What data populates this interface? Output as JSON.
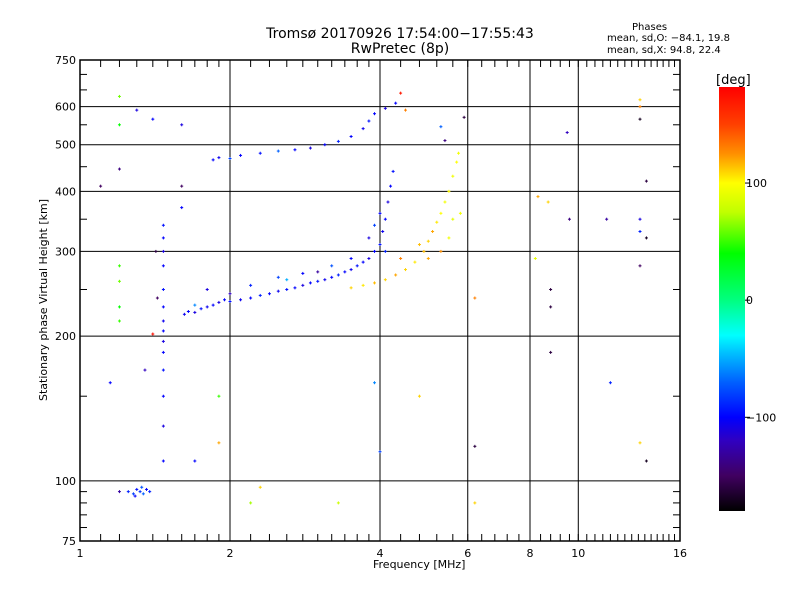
{
  "title_line1": "Tromsø 20170926 17:54:00−17:55:43",
  "title_line2": "RwPretec (8p)",
  "stats": {
    "heading": "Phases",
    "o_line": "mean, sd,O: −84.1, 19.8",
    "x_line": "mean, sd,X:  94.8, 22.4"
  },
  "colorbar": {
    "label": "[deg]",
    "range": [
      -180,
      182
    ],
    "ticks": [
      {
        "v": 100,
        "label": "100"
      },
      {
        "v": 0,
        "label": "0"
      },
      {
        "v": -100,
        "label": "−100"
      }
    ],
    "stops": [
      {
        "v": -180,
        "c": "#000000"
      },
      {
        "v": -150,
        "c": "#400060"
      },
      {
        "v": -120,
        "c": "#3000c0"
      },
      {
        "v": -100,
        "c": "#0000ff"
      },
      {
        "v": -70,
        "c": "#0060ff"
      },
      {
        "v": -45,
        "c": "#00c0ff"
      },
      {
        "v": -30,
        "c": "#00ffff"
      },
      {
        "v": 0,
        "c": "#00ff80"
      },
      {
        "v": 40,
        "c": "#00ff00"
      },
      {
        "v": 75,
        "c": "#c0ff00"
      },
      {
        "v": 100,
        "c": "#ffff00"
      },
      {
        "v": 125,
        "c": "#ff9000"
      },
      {
        "v": 150,
        "c": "#ff4000"
      },
      {
        "v": 182,
        "c": "#ff0000"
      }
    ]
  },
  "chart_data": {
    "type": "scatter",
    "xlabel": "Frequency [MHz]",
    "ylabel": "Stationary phase Virtual Height [km]",
    "xscale": "log",
    "yscale": "log",
    "xlim": [
      1,
      16
    ],
    "ylim": [
      75,
      750
    ],
    "xticks": [
      {
        "v": 1,
        "l": "1"
      },
      {
        "v": 2,
        "l": "2"
      },
      {
        "v": 4,
        "l": "4"
      },
      {
        "v": 6,
        "l": "6"
      },
      {
        "v": 8,
        "l": "8"
      },
      {
        "v": 10,
        "l": "10"
      },
      {
        "v": 16,
        "l": "16"
      }
    ],
    "yticks": [
      {
        "v": 75,
        "l": "75"
      },
      {
        "v": 100,
        "l": "100"
      },
      {
        "v": 200,
        "l": "200"
      },
      {
        "v": 300,
        "l": "300"
      },
      {
        "v": 400,
        "l": "400"
      },
      {
        "v": 500,
        "l": "500"
      },
      {
        "v": 600,
        "l": "600"
      },
      {
        "v": 750,
        "l": "750"
      }
    ],
    "grid": true,
    "point_fields": [
      "frequency_MHz",
      "height_km",
      "phase_deg"
    ],
    "points": [
      [
        1.62,
        222,
        -105
      ],
      [
        1.65,
        225,
        -100
      ],
      [
        1.7,
        224,
        -110
      ],
      [
        1.75,
        228,
        -95
      ],
      [
        1.8,
        230,
        -105
      ],
      [
        1.85,
        232,
        -100
      ],
      [
        1.9,
        235,
        -110
      ],
      [
        1.95,
        238,
        -100
      ],
      [
        2.0,
        236,
        -95
      ],
      [
        2.1,
        238,
        -105
      ],
      [
        2.2,
        240,
        -100
      ],
      [
        2.3,
        243,
        -90
      ],
      [
        2.4,
        245,
        -100
      ],
      [
        2.5,
        248,
        -105
      ],
      [
        2.6,
        250,
        -95
      ],
      [
        2.7,
        252,
        -100
      ],
      [
        2.8,
        255,
        -110
      ],
      [
        2.9,
        258,
        -100
      ],
      [
        3.0,
        260,
        -95
      ],
      [
        3.1,
        262,
        -105
      ],
      [
        3.2,
        265,
        -100
      ],
      [
        3.3,
        268,
        -90
      ],
      [
        3.4,
        272,
        -100
      ],
      [
        3.5,
        275,
        -105
      ],
      [
        3.6,
        280,
        -95
      ],
      [
        3.7,
        285,
        -100
      ],
      [
        3.8,
        290,
        -110
      ],
      [
        3.9,
        300,
        -100
      ],
      [
        4.0,
        310,
        -95
      ],
      [
        4.05,
        330,
        -105
      ],
      [
        4.1,
        350,
        -100
      ],
      [
        4.15,
        380,
        -110
      ],
      [
        4.2,
        410,
        -100
      ],
      [
        4.25,
        440,
        -95
      ],
      [
        1.8,
        250,
        -110
      ],
      [
        2.2,
        255,
        -90
      ],
      [
        2.5,
        265,
        -80
      ],
      [
        2.8,
        270,
        -100
      ],
      [
        3.2,
        280,
        -75
      ],
      [
        3.5,
        290,
        -100
      ],
      [
        3.8,
        320,
        -110
      ],
      [
        4.0,
        360,
        -100
      ],
      [
        4.1,
        300,
        -90
      ],
      [
        1.7,
        232,
        -60
      ],
      [
        2.0,
        245,
        -120
      ],
      [
        2.6,
        262,
        -50
      ],
      [
        3.0,
        272,
        -130
      ],
      [
        3.9,
        340,
        -80
      ],
      [
        3.5,
        252,
        110
      ],
      [
        3.7,
        255,
        105
      ],
      [
        3.9,
        258,
        115
      ],
      [
        4.1,
        262,
        110
      ],
      [
        4.3,
        268,
        120
      ],
      [
        4.5,
        275,
        110
      ],
      [
        4.7,
        285,
        105
      ],
      [
        4.9,
        300,
        115
      ],
      [
        5.0,
        315,
        110
      ],
      [
        5.1,
        330,
        120
      ],
      [
        5.2,
        345,
        105
      ],
      [
        5.3,
        360,
        100
      ],
      [
        5.4,
        380,
        95
      ],
      [
        5.5,
        400,
        100
      ],
      [
        5.6,
        430,
        95
      ],
      [
        5.7,
        460,
        100
      ],
      [
        5.75,
        480,
        95
      ],
      [
        5.6,
        350,
        90
      ],
      [
        5.8,
        360,
        95
      ],
      [
        5.5,
        320,
        95
      ],
      [
        4.8,
        310,
        115
      ],
      [
        5.0,
        290,
        120
      ],
      [
        4.4,
        290,
        130
      ],
      [
        5.3,
        300,
        125
      ],
      [
        1.85,
        465,
        -100
      ],
      [
        1.9,
        470,
        -105
      ],
      [
        2.0,
        468,
        -80
      ],
      [
        2.1,
        475,
        -100
      ],
      [
        2.3,
        480,
        -95
      ],
      [
        2.5,
        485,
        -70
      ],
      [
        2.7,
        488,
        -100
      ],
      [
        2.9,
        492,
        -110
      ],
      [
        3.1,
        500,
        -100
      ],
      [
        3.3,
        508,
        -90
      ],
      [
        3.5,
        520,
        -100
      ],
      [
        3.7,
        540,
        -105
      ],
      [
        3.8,
        560,
        -95
      ],
      [
        3.9,
        580,
        -100
      ],
      [
        4.1,
        595,
        -110
      ],
      [
        4.3,
        610,
        -100
      ],
      [
        1.47,
        110,
        -100
      ],
      [
        1.47,
        130,
        -110
      ],
      [
        1.47,
        150,
        -100
      ],
      [
        1.47,
        170,
        -95
      ],
      [
        1.47,
        185,
        -100
      ],
      [
        1.47,
        195,
        -110
      ],
      [
        1.47,
        205,
        -100
      ],
      [
        1.47,
        215,
        -105
      ],
      [
        1.47,
        230,
        -100
      ],
      [
        1.47,
        250,
        -95
      ],
      [
        1.47,
        280,
        -100
      ],
      [
        1.47,
        300,
        -110
      ],
      [
        1.47,
        320,
        -100
      ],
      [
        1.47,
        340,
        -95
      ],
      [
        1.43,
        240,
        -150
      ],
      [
        1.42,
        300,
        -160
      ],
      [
        1.4,
        202,
        175
      ],
      [
        1.25,
        95,
        -90
      ],
      [
        1.28,
        94,
        -80
      ],
      [
        1.3,
        96,
        -95
      ],
      [
        1.32,
        95,
        -85
      ],
      [
        1.34,
        94,
        -70
      ],
      [
        1.36,
        96,
        -100
      ],
      [
        1.38,
        95,
        -90
      ],
      [
        1.29,
        93,
        -100
      ],
      [
        1.33,
        97,
        -75
      ],
      [
        1.2,
        630,
        60
      ],
      [
        1.2,
        550,
        40
      ],
      [
        1.2,
        445,
        -140
      ],
      [
        1.2,
        280,
        50
      ],
      [
        1.2,
        260,
        60
      ],
      [
        1.2,
        230,
        40
      ],
      [
        1.2,
        215,
        50
      ],
      [
        1.2,
        95,
        -130
      ],
      [
        1.3,
        590,
        -110
      ],
      [
        1.4,
        565,
        -100
      ],
      [
        1.1,
        410,
        -150
      ],
      [
        1.35,
        170,
        -120
      ],
      [
        1.15,
        160,
        -100
      ],
      [
        1.6,
        550,
        -110
      ],
      [
        1.6,
        370,
        -100
      ],
      [
        1.6,
        410,
        -150
      ],
      [
        1.7,
        110,
        -100
      ],
      [
        1.9,
        150,
        50
      ],
      [
        1.9,
        120,
        120
      ],
      [
        2.3,
        97,
        110
      ],
      [
        2.2,
        90,
        70
      ],
      [
        3.3,
        90,
        80
      ],
      [
        3.9,
        160,
        -60
      ],
      [
        4.0,
        115,
        -80
      ],
      [
        4.5,
        590,
        130
      ],
      [
        4.4,
        640,
        170
      ],
      [
        6.2,
        240,
        130
      ],
      [
        6.2,
        118,
        -160
      ],
      [
        6.2,
        90,
        110
      ],
      [
        8.3,
        390,
        120
      ],
      [
        8.2,
        290,
        90
      ],
      [
        8.7,
        380,
        110
      ],
      [
        8.8,
        250,
        -160
      ],
      [
        8.8,
        230,
        -160
      ],
      [
        8.8,
        185,
        -160
      ],
      [
        9.5,
        530,
        -120
      ],
      [
        9.6,
        350,
        -140
      ],
      [
        11.4,
        350,
        -130
      ],
      [
        11.6,
        160,
        -90
      ],
      [
        13.3,
        620,
        110
      ],
      [
        13.3,
        600,
        130
      ],
      [
        13.3,
        565,
        -170
      ],
      [
        13.3,
        350,
        -110
      ],
      [
        13.3,
        330,
        -90
      ],
      [
        13.3,
        280,
        -150
      ],
      [
        13.3,
        120,
        110
      ],
      [
        13.7,
        320,
        -170
      ],
      [
        13.7,
        110,
        -170
      ],
      [
        13.7,
        420,
        -160
      ],
      [
        5.3,
        545,
        -70
      ],
      [
        5.4,
        510,
        -140
      ],
      [
        5.9,
        570,
        -160
      ],
      [
        4.8,
        150,
        110
      ]
    ]
  }
}
